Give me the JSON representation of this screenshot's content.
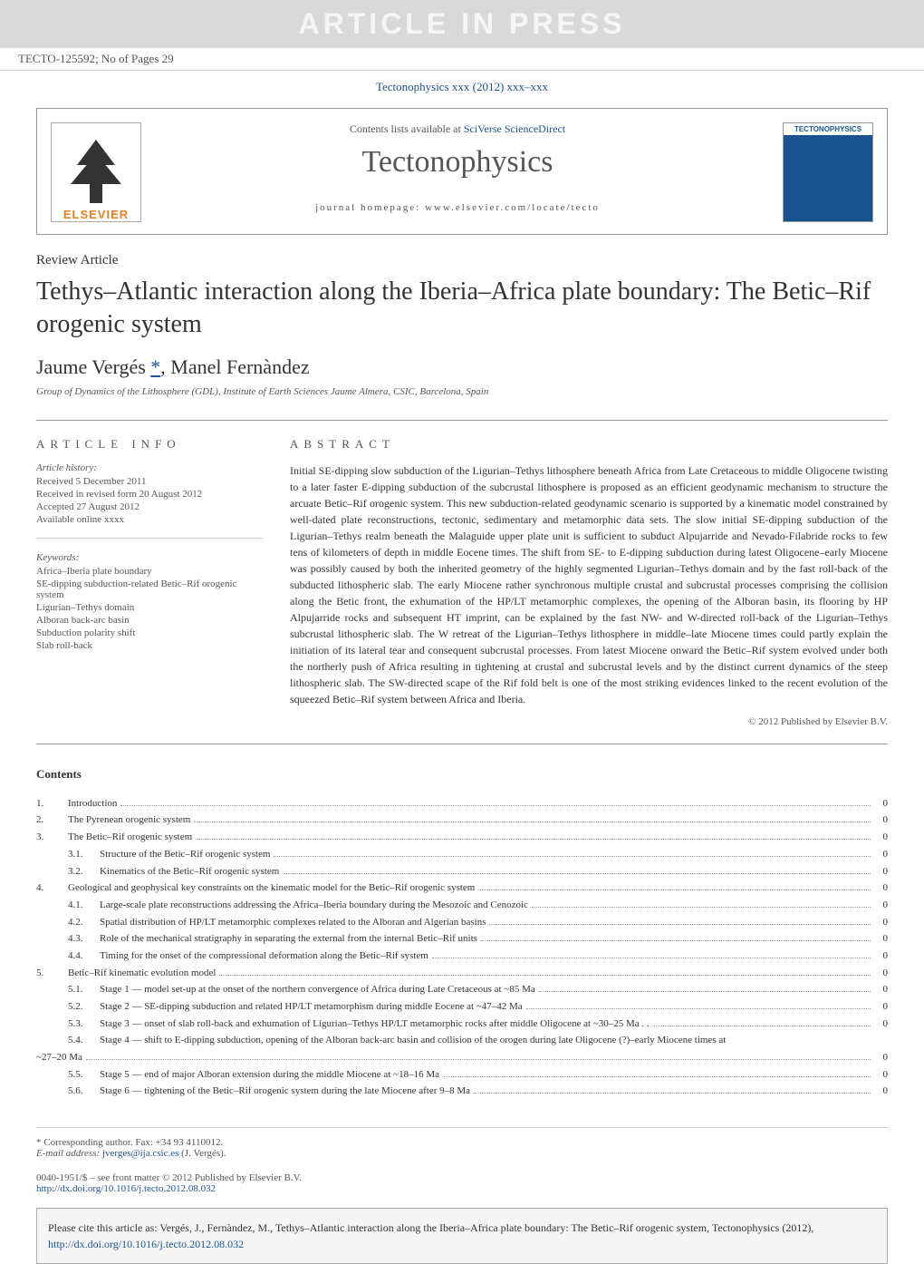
{
  "banner": {
    "text": "ARTICLE IN PRESS"
  },
  "articleId": "TECTO-125592; No of Pages 29",
  "journalRef": {
    "text": "Tectonophysics xxx (2012) xxx–xxx",
    "url": "#"
  },
  "headerBox": {
    "contentsAvail": "Contents lists available at ",
    "scidirect": "SciVerse ScienceDirect",
    "journalTitle": "Tectonophysics",
    "homepage": "journal homepage: www.elsevier.com/locate/tecto",
    "elsevier": "ELSEVIER",
    "coverTitle": "TECTONOPHYSICS"
  },
  "article": {
    "type": "Review Article",
    "title": "Tethys–Atlantic interaction along the Iberia–Africa plate boundary: The Betic–Rif orogenic system",
    "authors": "Jaume Vergés ",
    "authors2": ", Manel Fernàndez",
    "asterisk": "*",
    "affiliation": "Group of Dynamics of the Lithosphere (GDL), Institute of Earth Sciences Jaume Almera, CSIC, Barcelona, Spain"
  },
  "info": {
    "heading": "ARTICLE INFO",
    "historyLabel": "Article history:",
    "received": "Received 5 December 2011",
    "revised": "Received in revised form 20 August 2012",
    "accepted": "Accepted 27 August 2012",
    "online": "Available online xxxx",
    "keywordsLabel": "Keywords:",
    "kw1": "Africa–Iberia plate boundary",
    "kw2": "SE-dipping subduction-related Betic–Rif orogenic system",
    "kw3": "Ligurian–Tethys domain",
    "kw4": "Alboran back-arc basin",
    "kw5": "Subduction polarity shift",
    "kw6": "Slab roll-back"
  },
  "abstract": {
    "heading": "ABSTRACT",
    "text": "Initial SE-dipping slow subduction of the Ligurian–Tethys lithosphere beneath Africa from Late Cretaceous to middle Oligocene twisting to a later faster E-dipping subduction of the subcrustal lithosphere is proposed as an efficient geodynamic mechanism to structure the arcuate Betic–Rif orogenic system. This new subduction-related geodynamic scenario is supported by a kinematic model constrained by well-dated plate reconstructions, tectonic, sedimentary and metamorphic data sets. The slow initial SE-dipping subduction of the Ligurian–Tethys realm beneath the Malaguide upper plate unit is sufficient to subduct Alpujarride and Nevado-Filabride rocks to few tens of kilometers of depth in middle Eocene times. The shift from SE- to E-dipping subduction during latest Oligocene–early Miocene was possibly caused by both the inherited geometry of the highly segmented Ligurian–Tethys domain and by the fast roll-back of the subducted lithospheric slab. The early Miocene rather synchronous multiple crustal and subcrustal processes comprising the collision along the Betic front, the exhumation of the HP/LT metamorphic complexes, the opening of the Alboran basin, its flooring by HP Alpujarride rocks and subsequent HT imprint, can be explained by the fast NW- and W-directed roll-back of the Ligurian–Tethys subcrustal lithospheric slab. The W retreat of the Ligurian–Tethys lithosphere in middle–late Miocene times could partly explain the initiation of its lateral tear and consequent subcrustal processes. From latest Miocene onward the Betic–Rif system evolved under both the northerly push of Africa resulting in tightening at crustal and subcrustal levels and by the distinct current dynamics of the steep lithospheric slab. The SW-directed scape of the Rif fold belt is one of the most striking evidences linked to the recent evolution of the squeezed Betic–Rif system between Africa and Iberia.",
    "copyright": "© 2012 Published by Elsevier B.V."
  },
  "contents": {
    "heading": "Contents",
    "items": [
      {
        "n": "1.",
        "sn": "",
        "t": "Introduction",
        "p": "0"
      },
      {
        "n": "2.",
        "sn": "",
        "t": "The Pyrenean orogenic system",
        "p": "0"
      },
      {
        "n": "3.",
        "sn": "",
        "t": "The Betic–Rif orogenic system",
        "p": "0"
      },
      {
        "n": "",
        "sn": "3.1.",
        "t": "Structure of the Betic–Rif orogenic system",
        "p": "0"
      },
      {
        "n": "",
        "sn": "3.2.",
        "t": "Kinematics of the Betic–Rif orogenic system",
        "p": "0"
      },
      {
        "n": "4.",
        "sn": "",
        "t": "Geological and geophysical key constraints on the kinematic model for the Betic–Rif orogenic system",
        "p": "0"
      },
      {
        "n": "",
        "sn": "4.1.",
        "t": "Large-scale plate reconstructions addressing the Africa–Iberia boundary during the Mesozoic and Cenozoic",
        "p": "0"
      },
      {
        "n": "",
        "sn": "4.2.",
        "t": "Spatial distribution of HP/LT metamorphic complexes related to the Alboran and Algerian basins",
        "p": "0"
      },
      {
        "n": "",
        "sn": "4.3.",
        "t": "Role of the mechanical stratigraphy in separating the external from the internal Betic–Rif units",
        "p": "0"
      },
      {
        "n": "",
        "sn": "4.4.",
        "t": "Timing for the onset of the compressional deformation along the Betic–Rif system",
        "p": "0"
      },
      {
        "n": "5.",
        "sn": "",
        "t": "Betic–Rif kinematic evolution model",
        "p": "0"
      },
      {
        "n": "",
        "sn": "5.1.",
        "t": "Stage 1 — model set-up at the onset of the northern convergence of Africa during Late Cretaceous at ~85 Ma",
        "p": "0"
      },
      {
        "n": "",
        "sn": "5.2.",
        "t": "Stage 2 — SE-dipping subduction and related HP/LT metamorphism during middle Eocene at ~47–42 Ma",
        "p": "0"
      },
      {
        "n": "",
        "sn": "5.3.",
        "t": "Stage 3 — onset of slab roll-back and exhumation of Ligurian–Tethys HP/LT metamorphic rocks after middle Oligocene at ~30–25 Ma . .",
        "p": "0"
      },
      {
        "n": "",
        "sn": "5.4.",
        "t": "Stage 4 — shift to E-dipping subduction, opening of the Alboran back-arc basin and collision of the orogen during late Oligocene (?)–early Miocene times at",
        "p": ""
      }
    ],
    "extra": "~27–20 Ma",
    "extraPage": "0",
    "items2": [
      {
        "n": "",
        "sn": "5.5.",
        "t": "Stage 5 — end of major Alboran extension during the middle Miocene at ~18–16 Ma",
        "p": "0"
      },
      {
        "n": "",
        "sn": "5.6.",
        "t": "Stage 6 — tightening of the Betic–Rif orogenic system during the late Miocene after 9–8 Ma",
        "p": "0"
      }
    ]
  },
  "footer": {
    "corrAuth": "* Corresponding author. Fax: +34 93 4110012.",
    "emailLabel": "E-mail address: ",
    "email": "jverges@ija.csic.es",
    "emailSuffix": " (J. Vergés).",
    "issn": "0040-1951/$ – see front matter © 2012 Published by Elsevier B.V.",
    "doi": "http://dx.doi.org/10.1016/j.tecto.2012.08.032"
  },
  "citeBox": {
    "text": "Please cite this article as: Vergés, J., Fernàndez, M., Tethys–Atlantic interaction along the Iberia–Africa plate boundary: The Betic–Rif orogenic system, Tectonophysics (2012), ",
    "link": "http://dx.doi.org/10.1016/j.tecto.2012.08.032"
  }
}
